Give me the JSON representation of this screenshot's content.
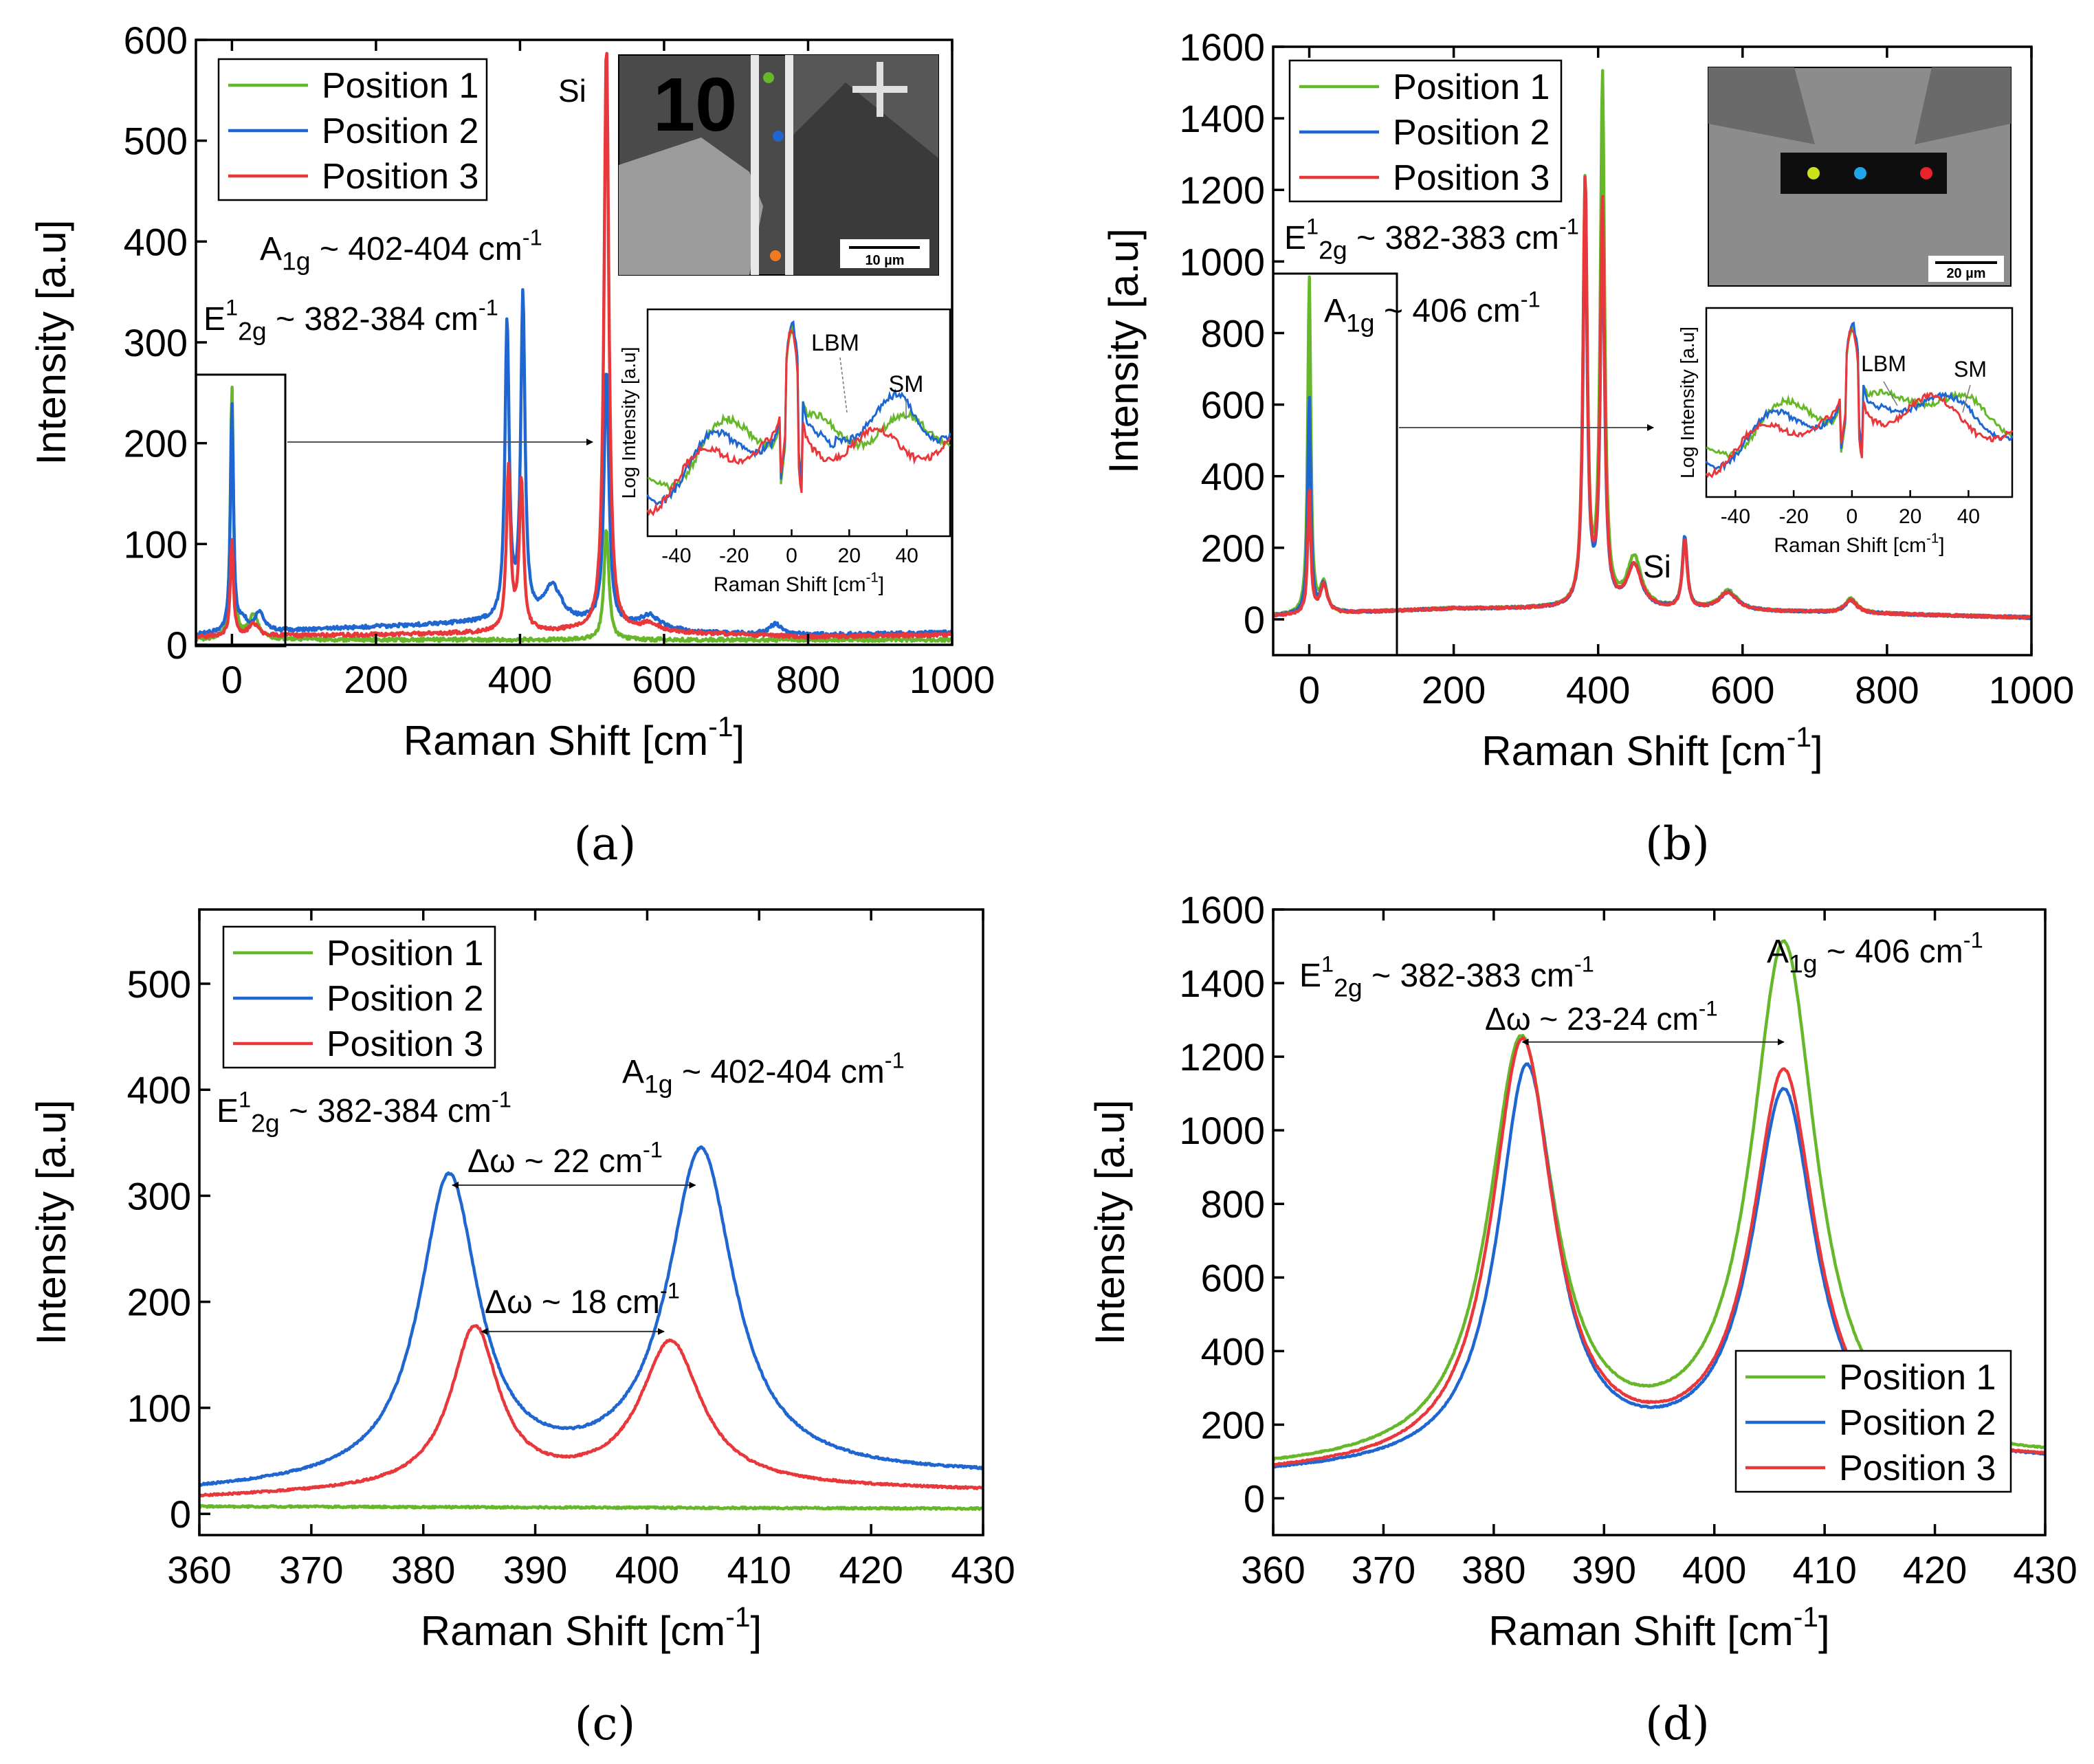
{
  "colors": {
    "position_1": "#66b82a",
    "position_2": "#1f66d1",
    "position_3": "#e8383b",
    "axis": "#000000",
    "photo_dark": "#3a3a3a",
    "photo_light": "#9a9a9a"
  },
  "chart_data": [
    {
      "panel": "a",
      "type": "line",
      "caption": "(a)",
      "xlabel": "Raman Shift [cm-1]",
      "ylabel": "Intensity [a.u]",
      "xlim": [
        -50,
        1000
      ],
      "ylim": [
        0,
        600
      ],
      "xticks": [
        "0",
        "200",
        "400",
        "600",
        "800",
        "1000"
      ],
      "yticks": [
        "0",
        "100",
        "200",
        "300",
        "400",
        "500",
        "600"
      ],
      "legend": [
        "Position 1",
        "Position 2",
        "Position 3"
      ],
      "legend_position": "top-left",
      "annotations": {
        "si": "Si",
        "a1g": "A1g ~ 402-404 cm-1",
        "e2g": "E2g1 ~ 382-384 cm-1"
      },
      "series": [
        {
          "name": "Position 1",
          "peaks": [
            [
              0,
              250,
              2.5
            ],
            [
              30,
              25,
              8
            ],
            [
              520,
              110,
              4
            ]
          ],
          "baseline": [
            [
              -50,
              5
            ],
            [
              1000,
              5
            ]
          ]
        },
        {
          "name": "Position 2",
          "peaks": [
            [
              0,
              225,
              2.5
            ],
            [
              15,
              12,
              6
            ],
            [
              38,
              18,
              8
            ],
            [
              382,
              295,
              3.5
            ],
            [
              404,
              320,
              3.5
            ],
            [
              445,
              35,
              15
            ],
            [
              520,
              250,
              4
            ],
            [
              580,
              12,
              15
            ],
            [
              755,
              10,
              10
            ]
          ],
          "baseline": [
            [
              -50,
              10
            ],
            [
              200,
              18
            ],
            [
              350,
              22
            ],
            [
              500,
              22
            ],
            [
              650,
              12
            ],
            [
              800,
              10
            ],
            [
              1000,
              12
            ]
          ]
        },
        {
          "name": "Position 3",
          "peaks": [
            [
              0,
              95,
              2.5
            ],
            [
              30,
              12,
              8
            ],
            [
              384,
              160,
              3.5
            ],
            [
              402,
              148,
              3.5
            ],
            [
              520,
              580,
              4
            ],
            [
              580,
              8,
              15
            ]
          ],
          "baseline": [
            [
              -50,
              8
            ],
            [
              200,
              10
            ],
            [
              350,
              12
            ],
            [
              500,
              14
            ],
            [
              800,
              8
            ],
            [
              1000,
              10
            ]
          ]
        }
      ],
      "inset": {
        "xlabel": "Raman Shift [cm-1]",
        "ylabel": "Log Intensity [a.u]",
        "xlim": [
          -50,
          55
        ],
        "xticks": [
          "-40",
          "-20",
          "0",
          "20",
          "40"
        ],
        "labels": {
          "lbm": "LBM",
          "sm": "SM"
        }
      },
      "image_inset": {
        "scale_bar": "10 µm",
        "sample_label": "10"
      }
    },
    {
      "panel": "b",
      "type": "line",
      "caption": "(b)",
      "xlabel": "Raman Shift [cm-1]",
      "ylabel": "Intensity [a.u]",
      "xlim": [
        -50,
        1000
      ],
      "ylim": [
        -100,
        1600
      ],
      "xticks": [
        "0",
        "200",
        "400",
        "600",
        "800",
        "1000"
      ],
      "yticks": [
        "0",
        "200",
        "400",
        "600",
        "800",
        "1000",
        "1200",
        "1400",
        "1600"
      ],
      "legend": [
        "Position 1",
        "Position 2",
        "Position 3"
      ],
      "legend_position": "top-left",
      "annotations": {
        "si": "Si",
        "a1g": "A1g ~ 406 cm-1",
        "e2g": "E2g1 ~ 382-383 cm-1"
      },
      "series": [
        {
          "name": "Position 1",
          "peaks": [
            [
              0,
              940,
              2.5
            ],
            [
              20,
              80,
              6
            ],
            [
              382,
              1190,
              3.5
            ],
            [
              406,
              1470,
              3.5
            ],
            [
              450,
              140,
              12
            ],
            [
              520,
              200,
              4
            ],
            [
              580,
              55,
              15
            ],
            [
              750,
              40,
              10
            ]
          ],
          "baseline": [
            [
              -50,
              10
            ],
            [
              200,
              30
            ],
            [
              350,
              30
            ],
            [
              700,
              20
            ],
            [
              1000,
              5
            ]
          ]
        },
        {
          "name": "Position 2",
          "peaks": [
            [
              0,
              600,
              2.5
            ],
            [
              20,
              80,
              6
            ],
            [
              382,
              1110,
              3.5
            ],
            [
              406,
              1060,
              3.5
            ],
            [
              450,
              120,
              12
            ],
            [
              520,
              200,
              4
            ],
            [
              580,
              50,
              15
            ],
            [
              750,
              35,
              10
            ]
          ],
          "baseline": [
            [
              -50,
              10
            ],
            [
              200,
              30
            ],
            [
              350,
              30
            ],
            [
              700,
              20
            ],
            [
              1000,
              5
            ]
          ]
        },
        {
          "name": "Position 3",
          "peaks": [
            [
              0,
              340,
              2.5
            ],
            [
              20,
              80,
              6
            ],
            [
              382,
              1190,
              3.5
            ],
            [
              406,
              1120,
              3.5
            ],
            [
              450,
              120,
              12
            ],
            [
              520,
              190,
              4
            ],
            [
              580,
              50,
              15
            ],
            [
              750,
              35,
              10
            ]
          ],
          "baseline": [
            [
              -50,
              10
            ],
            [
              200,
              30
            ],
            [
              350,
              30
            ],
            [
              700,
              20
            ],
            [
              1000,
              5
            ]
          ]
        }
      ],
      "inset": {
        "xlabel": "Raman Shift [cm-1]",
        "ylabel": "Log Intensity [a.u]",
        "xlim": [
          -50,
          55
        ],
        "xticks": [
          "-40",
          "-20",
          "0",
          "20",
          "40"
        ],
        "labels": {
          "lbm": "LBM",
          "sm": "SM"
        }
      },
      "image_inset": {
        "scale_bar": "20 µm"
      }
    },
    {
      "panel": "c",
      "type": "line",
      "caption": "(c)",
      "xlabel": "Raman Shift [cm-1]",
      "ylabel": "Intensity [a.u]",
      "xlim": [
        360,
        430
      ],
      "ylim": [
        -20,
        570
      ],
      "xticks": [
        "360",
        "370",
        "380",
        "390",
        "400",
        "410",
        "420",
        "430"
      ],
      "yticks": [
        "0",
        "100",
        "200",
        "300",
        "400",
        "500"
      ],
      "legend": [
        "Position 1",
        "Position 2",
        "Position 3"
      ],
      "legend_position": "top-left",
      "annotations": {
        "a1g": "A1g ~ 402-404 cm-1",
        "e2g": "E2g1 ~ 382-384 cm-1",
        "dw1": "Δω ~ 22 cm-1",
        "dw2": "Δω ~ 18 cm-1"
      },
      "series": [
        {
          "name": "Position 1",
          "peaks": [],
          "baseline": [
            [
              360,
              7
            ],
            [
              430,
              5
            ]
          ]
        },
        {
          "name": "Position 2",
          "peaks": [
            [
              382.3,
              285,
              3.2
            ],
            [
              404.8,
              305,
              3.6
            ]
          ],
          "baseline": [
            [
              360,
              20
            ],
            [
              380,
              28
            ],
            [
              395,
              32
            ],
            [
              410,
              36
            ],
            [
              430,
              36
            ]
          ]
        },
        {
          "name": "Position 3",
          "peaks": [
            [
              384.6,
              150,
              2.6
            ],
            [
              402.1,
              135,
              3.3
            ]
          ],
          "baseline": [
            [
              360,
              15
            ],
            [
              380,
              22
            ],
            [
              395,
              26
            ],
            [
              410,
              25
            ],
            [
              430,
              22
            ]
          ]
        }
      ]
    },
    {
      "panel": "d",
      "type": "line",
      "caption": "(d)",
      "xlabel": "Raman Shift [cm-1]",
      "ylabel": "Intensity [a.u]",
      "xlim": [
        360,
        430
      ],
      "ylim": [
        -100,
        1600
      ],
      "xticks": [
        "360",
        "370",
        "380",
        "390",
        "400",
        "410",
        "420",
        "430"
      ],
      "yticks": [
        "0",
        "200",
        "400",
        "600",
        "800",
        "1000",
        "1200",
        "1400",
        "1600"
      ],
      "legend": [
        "Position 1",
        "Position 2",
        "Position 3"
      ],
      "legend_position": "bottom-right",
      "annotations": {
        "a1g": "A1g ~ 406 cm-1",
        "e2g": "E2g1 ~ 382-383 cm-1",
        "dw1": "Δω ~ 23-24 cm-1"
      },
      "series": [
        {
          "name": "Position 1",
          "peaks": [
            [
              382.5,
              1140,
              3.6
            ],
            [
              406.3,
              1390,
              3.6
            ]
          ],
          "baseline": [
            [
              360,
              70
            ],
            [
              380,
              85
            ],
            [
              395,
              95
            ],
            [
              410,
              100
            ],
            [
              430,
              100
            ]
          ]
        },
        {
          "name": "Position 2",
          "peaks": [
            [
              383.0,
              1080,
              3.2
            ],
            [
              406.3,
              1000,
              3.5
            ]
          ],
          "baseline": [
            [
              360,
              60
            ],
            [
              380,
              75
            ],
            [
              395,
              90
            ],
            [
              410,
              95
            ],
            [
              430,
              95
            ]
          ]
        },
        {
          "name": "Position 3",
          "peaks": [
            [
              382.6,
              1150,
              3.4
            ],
            [
              406.3,
              1050,
              3.5
            ]
          ],
          "baseline": [
            [
              360,
              60
            ],
            [
              380,
              75
            ],
            [
              395,
              90
            ],
            [
              410,
              95
            ],
            [
              430,
              95
            ]
          ]
        }
      ]
    }
  ]
}
